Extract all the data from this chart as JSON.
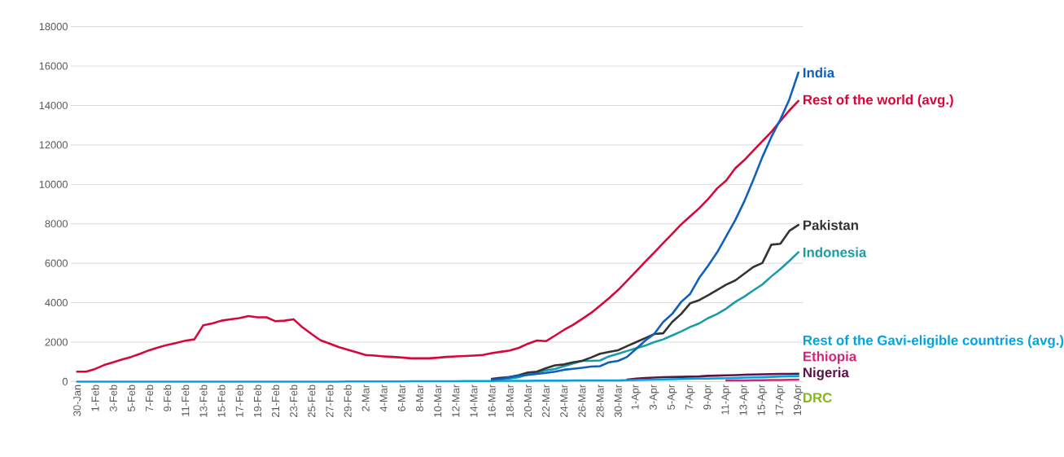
{
  "chart_data": {
    "type": "line",
    "categories": [
      "30-Jan",
      null,
      "1-Feb",
      null,
      "3-Feb",
      null,
      "5-Feb",
      null,
      "7-Feb",
      null,
      "9-Feb",
      null,
      "11-Feb",
      null,
      "13-Feb",
      null,
      "15-Feb",
      null,
      "17-Feb",
      null,
      "19-Feb",
      null,
      "21-Feb",
      null,
      "23-Feb",
      null,
      "25-Feb",
      null,
      "27-Feb",
      null,
      "29-Feb",
      null,
      "2-Mar",
      null,
      "4-Mar",
      null,
      "6-Mar",
      null,
      "8-Mar",
      null,
      "10-Mar",
      null,
      "12-Mar",
      null,
      "14-Mar",
      null,
      "16-Mar",
      null,
      "18-Mar",
      null,
      "20-Mar",
      null,
      "22-Mar",
      null,
      "24-Mar",
      null,
      "26-Mar",
      null,
      "28-Mar",
      null,
      "30-Mar",
      null,
      "1-Apr",
      null,
      "3-Apr",
      null,
      "5-Apr",
      null,
      "7-Apr",
      null,
      "9-Apr",
      null,
      "11-Apr",
      null,
      "13-Apr",
      null,
      "15-Apr",
      null,
      "17-Apr",
      null,
      "19-Apr"
    ],
    "series": [
      {
        "name": "India",
        "color": "#0f5fbf",
        "values": [
          null,
          null,
          null,
          null,
          null,
          null,
          null,
          null,
          null,
          null,
          null,
          null,
          null,
          null,
          null,
          null,
          null,
          null,
          null,
          null,
          null,
          null,
          null,
          null,
          null,
          null,
          null,
          null,
          null,
          null,
          null,
          null,
          null,
          null,
          null,
          null,
          null,
          null,
          null,
          null,
          null,
          null,
          null,
          null,
          null,
          null,
          100,
          130,
          230,
          300,
          340,
          390,
          440,
          500,
          600,
          650,
          700,
          760,
          780,
          980,
          1050,
          1250,
          1660,
          2070,
          2410,
          3020,
          3430,
          4040,
          4450,
          5260,
          5880,
          6560,
          7370,
          8190,
          9140,
          10230,
          11380,
          12400,
          13290,
          14310,
          15670
        ]
      },
      {
        "name": "Rest of the world (avg.)",
        "color": "#d6083b",
        "values": [
          500,
          500,
          640,
          840,
          980,
          1120,
          1250,
          1410,
          1590,
          1730,
          1860,
          1960,
          2070,
          2140,
          2860,
          2950,
          3090,
          3160,
          3220,
          3320,
          3260,
          3260,
          3060,
          3090,
          3160,
          2750,
          2410,
          2090,
          1930,
          1750,
          1620,
          1480,
          1350,
          1320,
          1280,
          1250,
          1220,
          1180,
          1180,
          1180,
          1210,
          1250,
          1280,
          1300,
          1320,
          1350,
          1440,
          1510,
          1580,
          1710,
          1920,
          2080,
          2050,
          2330,
          2620,
          2870,
          3170,
          3480,
          3850,
          4230,
          4640,
          5110,
          5590,
          6070,
          6540,
          7020,
          7490,
          7970,
          8380,
          8790,
          9260,
          9800,
          10200,
          10820,
          11230,
          11710,
          12190,
          12660,
          13210,
          13750,
          14230
        ]
      },
      {
        "name": "Pakistan",
        "color": "#333333",
        "values": [
          null,
          null,
          null,
          null,
          null,
          null,
          null,
          null,
          null,
          null,
          null,
          null,
          null,
          null,
          null,
          null,
          null,
          null,
          null,
          null,
          null,
          null,
          null,
          null,
          null,
          null,
          null,
          null,
          null,
          null,
          null,
          null,
          null,
          null,
          null,
          null,
          null,
          null,
          null,
          null,
          null,
          null,
          null,
          null,
          null,
          null,
          140,
          190,
          230,
          330,
          460,
          500,
          680,
          820,
          870,
          980,
          1050,
          1220,
          1410,
          1500,
          1590,
          1800,
          2000,
          2200,
          2410,
          2450,
          3020,
          3430,
          3970,
          4130,
          4380,
          4650,
          4920,
          5130,
          5470,
          5810,
          6010,
          6940,
          6990,
          7640,
          7940
        ]
      },
      {
        "name": "Indonesia",
        "color": "#1a9ba8",
        "values": [
          null,
          null,
          null,
          null,
          null,
          null,
          null,
          null,
          null,
          null,
          null,
          null,
          null,
          null,
          null,
          null,
          null,
          null,
          null,
          null,
          null,
          null,
          null,
          null,
          null,
          null,
          null,
          null,
          null,
          null,
          null,
          null,
          null,
          null,
          null,
          null,
          null,
          null,
          null,
          null,
          null,
          null,
          null,
          null,
          null,
          null,
          null,
          110,
          150,
          220,
          370,
          440,
          570,
          640,
          780,
          910,
          1050,
          1050,
          1070,
          1280,
          1410,
          1550,
          1690,
          1820,
          2000,
          2140,
          2340,
          2540,
          2770,
          2950,
          3220,
          3430,
          3700,
          4040,
          4310,
          4620,
          4920,
          5330,
          5710,
          6120,
          6560
        ]
      },
      {
        "name": "Rest of the Gavi-eligible countries (avg.)",
        "color": "#00a3e0",
        "values": [
          0,
          0,
          0,
          0,
          0,
          0,
          0,
          0,
          0,
          0,
          0,
          0,
          0,
          0,
          0,
          0,
          0,
          0,
          0,
          0,
          0,
          0,
          0,
          0,
          0,
          0,
          0,
          0,
          0,
          0,
          10,
          10,
          10,
          10,
          10,
          10,
          10,
          20,
          20,
          20,
          20,
          20,
          20,
          30,
          30,
          30,
          30,
          40,
          40,
          40,
          40,
          50,
          50,
          50,
          50,
          60,
          60,
          60,
          60,
          60,
          60,
          70,
          80,
          90,
          100,
          110,
          120,
          130,
          140,
          150,
          150,
          160,
          170,
          180,
          200,
          210,
          220,
          240,
          260,
          270,
          280
        ]
      },
      {
        "name": "Ethiopia",
        "color": "#d4237a",
        "values": [
          null,
          null,
          null,
          null,
          null,
          null,
          null,
          null,
          null,
          null,
          null,
          null,
          null,
          null,
          null,
          null,
          null,
          null,
          null,
          null,
          null,
          null,
          null,
          null,
          null,
          null,
          null,
          null,
          null,
          null,
          null,
          null,
          null,
          null,
          null,
          null,
          null,
          null,
          null,
          null,
          null,
          null,
          null,
          null,
          null,
          null,
          null,
          null,
          null,
          null,
          null,
          null,
          null,
          null,
          null,
          null,
          null,
          null,
          null,
          null,
          null,
          null,
          null,
          null,
          null,
          null,
          null,
          null,
          null,
          null,
          null,
          null,
          60,
          60,
          60,
          70,
          70,
          80,
          80,
          90,
          100
        ]
      },
      {
        "name": "Nigeria",
        "color": "#5c1348",
        "values": [
          null,
          null,
          null,
          null,
          null,
          null,
          null,
          null,
          null,
          null,
          null,
          null,
          null,
          null,
          null,
          null,
          null,
          null,
          null,
          null,
          null,
          null,
          null,
          null,
          null,
          null,
          null,
          null,
          null,
          null,
          null,
          null,
          null,
          null,
          null,
          null,
          null,
          null,
          null,
          null,
          null,
          null,
          null,
          null,
          null,
          null,
          null,
          null,
          null,
          null,
          null,
          null,
          null,
          null,
          null,
          null,
          null,
          null,
          null,
          null,
          null,
          100,
          150,
          180,
          200,
          220,
          230,
          240,
          250,
          260,
          290,
          300,
          320,
          330,
          350,
          360,
          370,
          380,
          390,
          390,
          400
        ]
      },
      {
        "name": "DRC",
        "color": "#84b819",
        "values": [
          null,
          null,
          null,
          null,
          null,
          null,
          null,
          null,
          null,
          null,
          null,
          null,
          null,
          null,
          null,
          null,
          null,
          null,
          null,
          null,
          null,
          null,
          null,
          null,
          null,
          null,
          null,
          null,
          null,
          null,
          null,
          null,
          null,
          null,
          null,
          null,
          null,
          null,
          null,
          null,
          null,
          null,
          null,
          null,
          null,
          null,
          null,
          null,
          null,
          null,
          null,
          null,
          null,
          null,
          null,
          null,
          null,
          null,
          null,
          null,
          null,
          null,
          null,
          null,
          null,
          null,
          null,
          null,
          null,
          null,
          null,
          null,
          null,
          null,
          null,
          null,
          null,
          null,
          null,
          null,
          null
        ]
      }
    ],
    "ylim": [
      0,
      18000
    ],
    "yticks": [
      0,
      2000,
      4000,
      6000,
      8000,
      10000,
      12000,
      14000,
      16000,
      18000
    ],
    "grid": "y",
    "legend": false,
    "marker": "none",
    "line_style": "solid"
  }
}
